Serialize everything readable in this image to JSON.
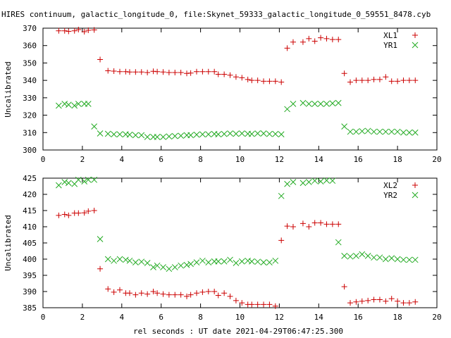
{
  "title": "HIRES continuum, galactic_longitude_0, file:Skynet_59333_galactic_longitude_0_59551_8478.cyb",
  "xlabel": "rel seconds : UT date 2021-04-29T06:47:25.300",
  "colors": {
    "series_1": "#cc0000",
    "series_2": "#22aa22"
  },
  "chart_data": [
    {
      "type": "scatter",
      "ylabel": "Uncalibrated",
      "xlim": [
        0,
        20
      ],
      "ylim": [
        300,
        370
      ],
      "xticks": [
        0,
        2,
        4,
        6,
        8,
        10,
        12,
        14,
        16,
        18,
        20
      ],
      "yticks": [
        300,
        310,
        320,
        330,
        340,
        350,
        360,
        370
      ],
      "legend": "top-right",
      "grid": false,
      "series": [
        {
          "name": "XL1",
          "marker": "plus",
          "x": [
            0.8,
            1.1,
            1.3,
            1.6,
            1.8,
            2.1,
            2.3,
            2.6,
            2.9,
            3.3,
            3.6,
            3.9,
            4.2,
            4.4,
            4.7,
            5.0,
            5.3,
            5.6,
            5.8,
            6.1,
            6.4,
            6.7,
            7.0,
            7.3,
            7.5,
            7.8,
            8.1,
            8.4,
            8.7,
            8.9,
            9.2,
            9.5,
            9.8,
            10.1,
            10.4,
            10.6,
            10.9,
            11.2,
            11.5,
            11.8,
            12.1,
            12.4,
            12.7,
            13.2,
            13.5,
            13.8,
            14.1,
            14.4,
            14.7,
            15.0,
            15.3,
            15.6,
            15.9,
            16.2,
            16.5,
            16.8,
            17.1,
            17.4,
            17.7,
            18.0,
            18.3,
            18.6,
            18.9
          ],
          "y": [
            368.5,
            368.5,
            368.2,
            368.5,
            369.2,
            368.0,
            368.8,
            369.0,
            352.0,
            345.5,
            345.3,
            345.0,
            345.0,
            344.8,
            344.8,
            344.8,
            344.5,
            345.2,
            345.0,
            344.8,
            344.5,
            344.5,
            344.5,
            344.0,
            344.2,
            345.0,
            345.0,
            345.0,
            345.0,
            343.5,
            343.5,
            343.0,
            342.0,
            341.5,
            340.5,
            340.0,
            340.0,
            339.5,
            339.5,
            339.5,
            339.0,
            358.5,
            362.0,
            362.0,
            364.0,
            362.5,
            364.5,
            364.0,
            363.5,
            363.5,
            344.0,
            339.0,
            340.0,
            340.0,
            340.0,
            340.5,
            340.5,
            342.0,
            339.5,
            339.5,
            340.0,
            340.0,
            340.0
          ]
        },
        {
          "name": "YR1",
          "marker": "cross",
          "x": [
            0.8,
            1.1,
            1.3,
            1.6,
            1.8,
            2.1,
            2.3,
            2.6,
            2.9,
            3.3,
            3.6,
            3.9,
            4.2,
            4.4,
            4.7,
            5.0,
            5.3,
            5.6,
            5.8,
            6.1,
            6.4,
            6.7,
            7.0,
            7.3,
            7.5,
            7.8,
            8.1,
            8.4,
            8.7,
            8.9,
            9.2,
            9.5,
            9.8,
            10.1,
            10.4,
            10.6,
            10.9,
            11.2,
            11.5,
            11.8,
            12.1,
            12.4,
            12.7,
            13.2,
            13.5,
            13.8,
            14.1,
            14.4,
            14.7,
            15.0,
            15.3,
            15.6,
            15.9,
            16.2,
            16.5,
            16.8,
            17.1,
            17.4,
            17.7,
            18.0,
            18.3,
            18.6,
            18.9
          ],
          "y": [
            325.5,
            326.5,
            326.0,
            325.5,
            326.5,
            326.5,
            326.5,
            313.5,
            309.5,
            309.3,
            309.0,
            309.0,
            309.0,
            308.8,
            308.5,
            308.5,
            307.5,
            307.5,
            307.5,
            307.5,
            307.8,
            308.0,
            308.2,
            308.5,
            308.5,
            308.8,
            309.0,
            309.0,
            309.2,
            309.0,
            309.2,
            309.5,
            309.3,
            309.5,
            309.3,
            309.2,
            309.5,
            309.5,
            309.2,
            309.2,
            309.0,
            323.5,
            326.5,
            327.0,
            326.5,
            326.5,
            326.5,
            326.5,
            326.8,
            327.0,
            313.5,
            310.5,
            310.5,
            310.8,
            311.0,
            310.5,
            310.5,
            310.5,
            310.5,
            310.5,
            310.0,
            310.0,
            310.0
          ]
        }
      ]
    },
    {
      "type": "scatter",
      "ylabel": "Uncalibrated",
      "xlim": [
        0,
        20
      ],
      "ylim": [
        385,
        425
      ],
      "xticks": [
        0,
        2,
        4,
        6,
        8,
        10,
        12,
        14,
        16,
        18,
        20
      ],
      "yticks": [
        385,
        390,
        395,
        400,
        405,
        410,
        415,
        420,
        425
      ],
      "legend": "top-right",
      "grid": false,
      "series": [
        {
          "name": "XL2",
          "marker": "plus",
          "x": [
            0.8,
            1.1,
            1.3,
            1.6,
            1.8,
            2.1,
            2.3,
            2.6,
            2.9,
            3.3,
            3.6,
            3.9,
            4.2,
            4.4,
            4.7,
            5.0,
            5.3,
            5.6,
            5.8,
            6.1,
            6.4,
            6.7,
            7.0,
            7.3,
            7.5,
            7.8,
            8.1,
            8.4,
            8.7,
            8.9,
            9.2,
            9.5,
            9.8,
            10.1,
            10.4,
            10.6,
            10.9,
            11.2,
            11.5,
            11.8,
            12.1,
            12.4,
            12.7,
            13.2,
            13.5,
            13.8,
            14.1,
            14.4,
            14.7,
            15.0,
            15.3,
            15.6,
            15.9,
            16.2,
            16.5,
            16.8,
            17.1,
            17.4,
            17.7,
            18.0,
            18.3,
            18.6,
            18.9
          ],
          "y": [
            413.5,
            413.8,
            413.5,
            414.2,
            414.2,
            414.3,
            414.8,
            415.0,
            397.0,
            390.8,
            389.8,
            390.5,
            389.5,
            389.5,
            389.0,
            389.5,
            389.2,
            390.0,
            389.5,
            389.2,
            389.0,
            389.0,
            389.0,
            388.5,
            389.0,
            389.5,
            389.8,
            390.0,
            390.0,
            388.8,
            389.5,
            388.5,
            387.2,
            386.5,
            386.0,
            386.0,
            386.0,
            386.0,
            386.0,
            385.5,
            405.8,
            410.2,
            410.0,
            411.0,
            410.0,
            411.2,
            411.2,
            410.8,
            410.8,
            410.8,
            391.5,
            386.5,
            386.8,
            387.0,
            387.2,
            387.5,
            387.5,
            387.0,
            387.8,
            387.0,
            386.5,
            386.5,
            386.8
          ]
        },
        {
          "name": "YR2",
          "marker": "cross",
          "x": [
            0.8,
            1.1,
            1.3,
            1.6,
            1.8,
            2.1,
            2.3,
            2.6,
            2.9,
            3.3,
            3.6,
            3.9,
            4.2,
            4.4,
            4.7,
            5.0,
            5.3,
            5.6,
            5.8,
            6.1,
            6.4,
            6.7,
            7.0,
            7.3,
            7.5,
            7.8,
            8.1,
            8.4,
            8.7,
            8.9,
            9.2,
            9.5,
            9.8,
            10.1,
            10.4,
            10.6,
            10.9,
            11.2,
            11.5,
            11.8,
            12.1,
            12.4,
            12.7,
            13.2,
            13.5,
            13.8,
            14.1,
            14.4,
            14.7,
            15.0,
            15.3,
            15.6,
            15.9,
            16.2,
            16.5,
            16.8,
            17.1,
            17.4,
            17.7,
            18.0,
            18.3,
            18.6,
            18.9
          ],
          "y": [
            422.8,
            423.8,
            423.5,
            423.2,
            424.5,
            424.0,
            424.5,
            424.5,
            406.2,
            400.0,
            399.5,
            400.0,
            399.8,
            399.5,
            399.0,
            399.2,
            398.8,
            397.5,
            398.0,
            397.5,
            397.0,
            397.5,
            398.0,
            398.2,
            398.5,
            399.0,
            399.5,
            399.0,
            399.3,
            399.3,
            399.3,
            399.8,
            398.8,
            399.3,
            399.5,
            399.3,
            399.2,
            399.0,
            399.0,
            399.5,
            419.5,
            423.2,
            423.8,
            423.5,
            423.8,
            424.2,
            424.0,
            424.3,
            424.2,
            405.2,
            401.0,
            400.8,
            401.0,
            401.5,
            401.0,
            400.5,
            400.5,
            400.0,
            400.3,
            400.0,
            399.8,
            399.8,
            399.8
          ]
        }
      ]
    }
  ]
}
